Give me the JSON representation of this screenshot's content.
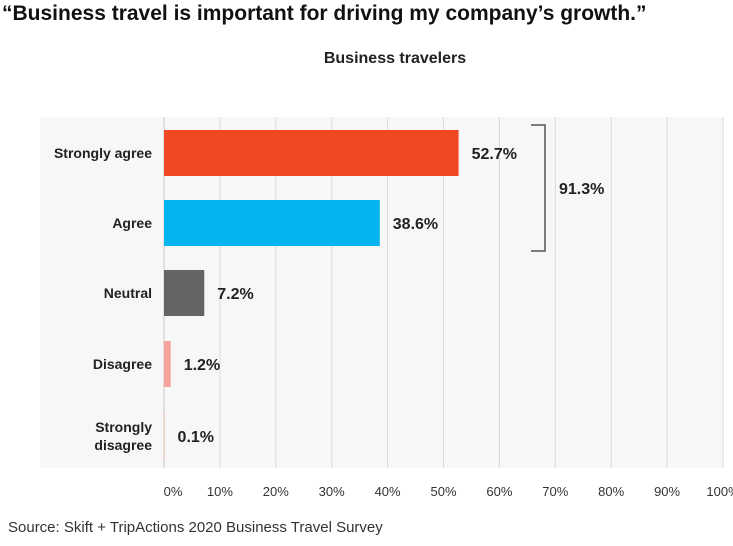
{
  "title": "“Business travel is important for driving my company’s growth.”",
  "subtitle": "Business travelers",
  "source": "Source: Skift + TripActions 2020 Business Travel Survey",
  "chart_data": {
    "type": "bar",
    "orientation": "horizontal",
    "title": "Business travelers",
    "categories": [
      "Strongly agree",
      "Agree",
      "Neutral",
      "Disagree",
      "Strongly disagree"
    ],
    "category_lines": [
      [
        "Strongly agree"
      ],
      [
        "Agree"
      ],
      [
        "Neutral"
      ],
      [
        "Disagree"
      ],
      [
        "Strongly",
        "disagree"
      ]
    ],
    "values": [
      52.7,
      38.6,
      7.2,
      1.2,
      0.1
    ],
    "value_labels": [
      "52.7%",
      "38.6%",
      "7.2%",
      "1.2%",
      "0.1%"
    ],
    "colors": [
      "#ef4823",
      "#04b4ef",
      "#646464",
      "#f4a49a",
      "#f4a49a"
    ],
    "xlim": [
      0,
      100
    ],
    "xticks": [
      "0%",
      "10%",
      "20%",
      "30%",
      "40%",
      "50%",
      "60%",
      "70%",
      "80%",
      "90%",
      "100%"
    ],
    "grid": true,
    "bracket": {
      "label": "91.3%",
      "spans": [
        "Strongly agree",
        "Agree"
      ]
    }
  }
}
